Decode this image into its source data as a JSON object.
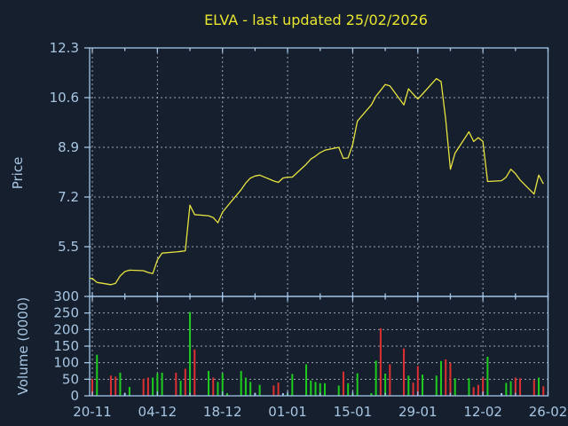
{
  "title": "ELVA - last updated 25/02/2026",
  "colors": {
    "background": "#151f2e",
    "axis_blue": "#a3c6e8",
    "label_blue": "#a8c6e2",
    "title_yellow": "#e9e52e",
    "price_line_yellow": "#e8e340",
    "grid_gray": "#b9bfc6",
    "volume_up_green": "#1ecb1e",
    "volume_down_red": "#dd3030",
    "volume_flat_blue": "#a3c6e8"
  },
  "chart_data": {
    "type": "line+bar",
    "title": "ELVA - last updated 25/02/2026",
    "grid": true,
    "x_axis": {
      "tick_labels": [
        "20-11",
        "04-12",
        "18-12",
        "01-01",
        "15-01",
        "29-01",
        "12-02",
        "26-02"
      ],
      "tick_day_indices": [
        0,
        14,
        28,
        42,
        56,
        70,
        84,
        98
      ],
      "minor_tick_step_days": 7,
      "range_days": [
        0,
        98
      ]
    },
    "price_panel": {
      "type": "line",
      "ylabel": "Price",
      "yticks": [
        12.3,
        10.6,
        8.9,
        7.2,
        5.5
      ],
      "ylim": [
        3.8,
        12.3
      ]
    },
    "volume_panel": {
      "type": "bar",
      "ylabel": "Volume (0000)",
      "yticks": [
        300,
        250,
        200,
        150,
        100,
        50,
        0
      ],
      "ylim": [
        0,
        300
      ]
    },
    "day_columns": [
      "day_index",
      "price",
      "volume_0000",
      "bar_color_code"
    ],
    "bar_color_legend": {
      "g": "volume_up_green",
      "r": "volume_down_red",
      "b": "volume_flat_blue"
    },
    "days": [
      [
        0,
        4.42,
        51,
        "r"
      ],
      [
        1,
        4.28,
        124,
        "g"
      ],
      [
        4,
        4.2,
        61,
        "r"
      ],
      [
        5,
        4.25,
        58,
        "r"
      ],
      [
        6,
        4.5,
        70,
        "g"
      ],
      [
        7,
        4.65,
        8,
        "b"
      ],
      [
        8,
        4.7,
        27,
        "g"
      ],
      [
        11,
        4.68,
        51,
        "r"
      ],
      [
        12,
        4.62,
        55,
        "r"
      ],
      [
        13,
        4.58,
        55,
        "g"
      ],
      [
        14,
        5.05,
        68,
        "g"
      ],
      [
        15,
        5.28,
        70,
        "g"
      ],
      [
        18,
        5.32,
        70,
        "r"
      ],
      [
        19,
        5.34,
        46,
        "g"
      ],
      [
        20,
        5.36,
        82,
        "r"
      ],
      [
        21,
        6.92,
        253,
        "g"
      ],
      [
        22,
        6.6,
        140,
        "r"
      ],
      [
        25,
        6.56,
        75,
        "g"
      ],
      [
        26,
        6.5,
        55,
        "r"
      ],
      [
        27,
        6.32,
        42,
        "g"
      ],
      [
        28,
        6.68,
        68,
        "g"
      ],
      [
        29,
        6.88,
        8,
        "g"
      ],
      [
        32,
        7.45,
        75,
        "g"
      ],
      [
        33,
        7.68,
        55,
        "g"
      ],
      [
        34,
        7.85,
        42,
        "g"
      ],
      [
        35,
        7.92,
        8,
        "b"
      ],
      [
        36,
        7.95,
        33,
        "g"
      ],
      [
        39,
        7.75,
        31,
        "r"
      ],
      [
        40,
        7.7,
        40,
        "r"
      ],
      [
        41,
        7.85,
        8,
        "b"
      ],
      [
        42,
        7.88,
        8,
        "g"
      ],
      [
        43,
        7.88,
        66,
        "g"
      ],
      [
        46,
        8.32,
        95,
        "g"
      ],
      [
        47,
        8.5,
        46,
        "g"
      ],
      [
        48,
        8.6,
        42,
        "g"
      ],
      [
        49,
        8.72,
        38,
        "g"
      ],
      [
        50,
        8.8,
        38,
        "g"
      ],
      [
        53,
        8.9,
        31,
        "g"
      ],
      [
        54,
        8.52,
        73,
        "r"
      ],
      [
        55,
        8.54,
        38,
        "g"
      ],
      [
        56,
        9.0,
        8,
        "g"
      ],
      [
        57,
        9.8,
        68,
        "g"
      ],
      [
        60,
        10.35,
        8,
        "g"
      ],
      [
        61,
        10.65,
        106,
        "g"
      ],
      [
        62,
        10.85,
        204,
        "r"
      ],
      [
        63,
        11.05,
        67,
        "g"
      ],
      [
        64,
        11.0,
        95,
        "r"
      ],
      [
        67,
        10.35,
        143,
        "r"
      ],
      [
        68,
        10.9,
        61,
        "g"
      ],
      [
        69,
        10.72,
        40,
        "r"
      ],
      [
        70,
        10.55,
        90,
        "r"
      ],
      [
        71,
        10.72,
        64,
        "g"
      ],
      [
        74,
        11.25,
        61,
        "g"
      ],
      [
        75,
        11.15,
        105,
        "g"
      ],
      [
        76,
        9.85,
        110,
        "r"
      ],
      [
        77,
        8.15,
        99,
        "r"
      ],
      [
        78,
        8.7,
        53,
        "g"
      ],
      [
        81,
        9.43,
        53,
        "g"
      ],
      [
        82,
        9.1,
        26,
        "r"
      ],
      [
        83,
        9.23,
        33,
        "r"
      ],
      [
        84,
        9.1,
        55,
        "r"
      ],
      [
        85,
        7.73,
        118,
        "g"
      ],
      [
        88,
        7.76,
        8,
        "b"
      ],
      [
        89,
        7.88,
        39,
        "g"
      ],
      [
        90,
        8.15,
        44,
        "g"
      ],
      [
        91,
        8.0,
        55,
        "r"
      ],
      [
        92,
        7.78,
        53,
        "r"
      ],
      [
        95,
        7.3,
        48,
        "r"
      ],
      [
        96,
        7.95,
        55,
        "g"
      ],
      [
        97,
        7.65,
        29,
        "r"
      ]
    ]
  }
}
